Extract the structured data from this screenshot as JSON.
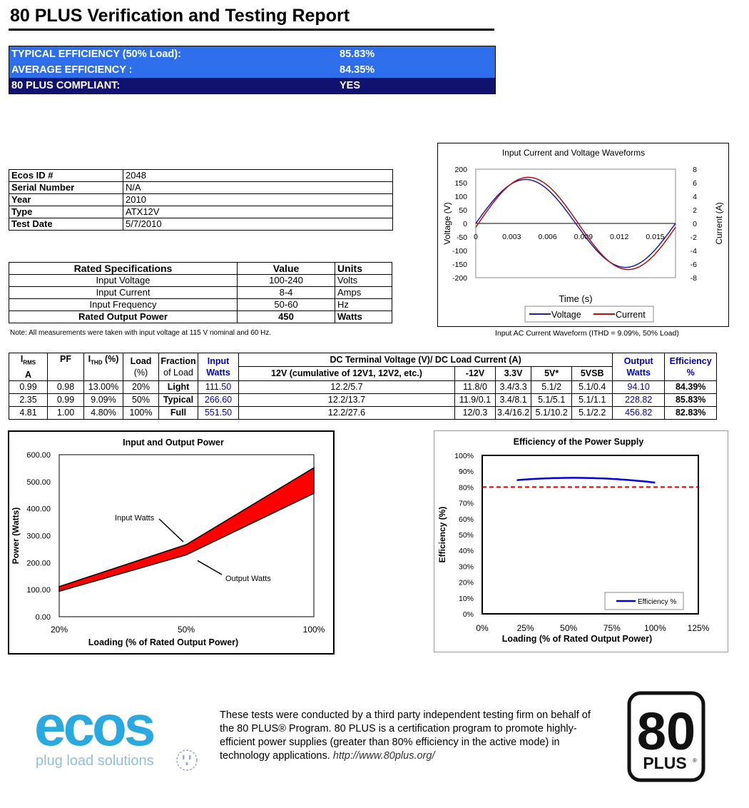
{
  "title": "80 PLUS Verification and Testing Report",
  "summary": [
    {
      "label": "TYPICAL EFFICIENCY (50% Load):",
      "value": "85.83%"
    },
    {
      "label": "AVERAGE EFFICIENCY :",
      "value": "84.35%"
    },
    {
      "label": "80 PLUS COMPLIANT:",
      "value": "YES"
    }
  ],
  "info": [
    {
      "key": "Ecos ID #",
      "value": "2048"
    },
    {
      "key": "Serial Number",
      "value": "N/A"
    },
    {
      "key": "Year",
      "value": "2010"
    },
    {
      "key": "Type",
      "value": "ATX12V"
    },
    {
      "key": "Test Date",
      "value": "5/7/2010"
    }
  ],
  "spec": {
    "headers": [
      "Rated Specifications",
      "Value",
      "Units"
    ],
    "rows": [
      {
        "name": "Input Voltage",
        "value": "100-240",
        "units": "Volts"
      },
      {
        "name": "Input Current",
        "value": "8-4",
        "units": "Amps"
      },
      {
        "name": "Input Frequency",
        "value": "50-60",
        "units": "Hz"
      },
      {
        "name": "Rated Output Power",
        "value": "450",
        "units": "Watts"
      }
    ]
  },
  "note": "Note: All measurements were taken with input voltage at 115 V nominal and 60 Hz.",
  "measurements": {
    "headers": {
      "irms": "I",
      "irms_sub": "RMS",
      "irms_unit": "A",
      "pf": "PF",
      "ithd": "I",
      "ithd_sub": "THD",
      "ithd_unit": "(%)",
      "load": "Load",
      "load_unit": "(%)",
      "fraction": "Fraction",
      "fraction2": "of Load",
      "input": "Input",
      "input2": "Watts",
      "dc_title": "DC Terminal Voltage (V)/ DC Load Current (A)",
      "v12": "12V (cumulative of 12V1, 12V2, etc.)",
      "vm12": "-12V",
      "v33": "3.3V",
      "v5": "5V*",
      "v5sb": "5VSB",
      "output": "Output",
      "output2": "Watts",
      "eff": "Efficiency",
      "eff2": "%"
    },
    "rows": [
      {
        "irms": "0.99",
        "pf": "0.98",
        "ithd": "13.00%",
        "load": "20%",
        "fraction": "Light",
        "input": "111.50",
        "v12": "12.2/5.7",
        "vm12": "11.8/0",
        "v33": "3.4/3.3",
        "v5": "5.1/2",
        "v5sb": "5.1/0.4",
        "output": "94.10",
        "eff": "84.39%"
      },
      {
        "irms": "2.35",
        "pf": "0.99",
        "ithd": "9.09%",
        "load": "50%",
        "fraction": "Typical",
        "input": "266.60",
        "v12": "12.2/13.7",
        "vm12": "11.9/0.1",
        "v33": "3.4/8.1",
        "v5": "5.1/5.1",
        "v5sb": "5.1/1.1",
        "output": "228.82",
        "eff": "85.83%"
      },
      {
        "irms": "4.81",
        "pf": "1.00",
        "ithd": "4.80%",
        "load": "100%",
        "fraction": "Full",
        "input": "551.50",
        "v12": "12.2/27.6",
        "vm12": "12/0.3",
        "v33": "3.4/16.2",
        "v5": "5.1/10.2",
        "v5sb": "5.1/2.2",
        "output": "456.82",
        "eff": "82.83%"
      }
    ]
  },
  "chart_data": [
    {
      "type": "line",
      "title": "Input Current and Voltage Waveforms",
      "xlabel": "Time (s)",
      "ylabel": "Voltage (V)",
      "y2label": "Current (A)",
      "xlim": [
        0,
        0.0167
      ],
      "ylim": [
        -200,
        200
      ],
      "y2lim": [
        -8,
        8
      ],
      "xticks": [
        "0",
        "0.003",
        "0.006",
        "0.009",
        "0.012",
        "0.015"
      ],
      "xtick_values": [
        0,
        0.003,
        0.006,
        0.009,
        0.012,
        0.015
      ],
      "yticks": [
        "200",
        "150",
        "100",
        "50",
        "0",
        "-50",
        "-100",
        "-150",
        "-200"
      ],
      "y2ticks": [
        "8",
        "6",
        "4",
        "2",
        "0",
        "-2",
        "-4",
        "-6",
        "-8"
      ],
      "series": [
        {
          "name": "Voltage",
          "color": "#1f1fa0",
          "amplitude": 162
        },
        {
          "name": "Current",
          "color": "#b01010",
          "amplitude": 6.8
        }
      ],
      "legend": "bottom",
      "grid": false,
      "caption": "Input AC Current Waveform (ITHD = 9.09%, 50% Load)"
    },
    {
      "type": "area",
      "title": "Input and Output Power",
      "xlabel": "Loading (% of Rated Output Power)",
      "ylabel": "Power (Watts)",
      "categories": [
        "20%",
        "50%",
        "100%"
      ],
      "ylim": [
        0,
        600
      ],
      "yticks": [
        "600.00",
        "500.00",
        "400.00",
        "300.00",
        "200.00",
        "100.00",
        "0.00"
      ],
      "series": [
        {
          "name": "Input Watts",
          "values": [
            111.5,
            266.6,
            551.5
          ]
        },
        {
          "name": "Output Watts",
          "values": [
            94.1,
            228.82,
            456.82
          ]
        }
      ],
      "fill_color": "#ff0000",
      "annotations": [
        "Input Watts",
        "Output Watts"
      ],
      "grid": false
    },
    {
      "type": "line",
      "title": "Efficiency of the Power Supply",
      "xlabel": "Loading (% of Rated Output Power)",
      "ylabel": "Efficiency (%)",
      "xlim": [
        0,
        125
      ],
      "ylim": [
        0,
        100
      ],
      "xticks": [
        "0%",
        "25%",
        "50%",
        "75%",
        "100%",
        "125%"
      ],
      "yticks": [
        "100%",
        "90%",
        "80%",
        "70%",
        "60%",
        "50%",
        "40%",
        "30%",
        "20%",
        "10%",
        "0%"
      ],
      "series": [
        {
          "name": "Efficiency %",
          "x": [
            20,
            50,
            100
          ],
          "values": [
            84.39,
            85.83,
            82.83
          ],
          "color": "#0000dd"
        }
      ],
      "threshold": 80,
      "threshold_color": "#dd0000",
      "legend": "bottom-right",
      "grid": false
    }
  ],
  "footer": {
    "logo_text": "ecos",
    "logo_tagline": "plug load solutions",
    "text": "These tests were conducted by a third party independent testing firm on behalf of the 80 PLUS® Program. 80 PLUS is a certification program to promote highly-efficient power supplies (greater than 80% efficiency in the active mode) in technology applications.",
    "url": "http://www.80plus.org/",
    "badge_number": "80",
    "badge_text": "PLUS",
    "badge_mark": "®"
  }
}
